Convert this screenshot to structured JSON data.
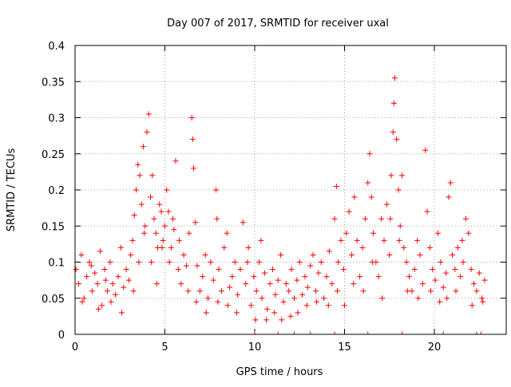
{
  "chart_data": {
    "type": "scatter",
    "title": "Day 007 of 2017, SRMTID for receiver uxal",
    "xlabel": "GPS time / hours",
    "ylabel": "SRMTID / TECUs",
    "xlim": [
      0,
      24
    ],
    "ylim": [
      0,
      0.4
    ],
    "x_ticks": [
      0,
      5,
      10,
      15,
      20
    ],
    "x_tick_labels": [
      "0",
      "5",
      "10",
      "15",
      "20"
    ],
    "y_ticks": [
      0,
      0.05,
      0.1,
      0.15,
      0.2,
      0.25,
      0.3,
      0.35,
      0.4
    ],
    "y_tick_labels": [
      "0",
      "0.05",
      "0.1",
      "0.15",
      "0.2",
      "0.25",
      "0.3",
      "0.35",
      "0.4"
    ],
    "grid": true,
    "marker": "+",
    "color": "#ff0000",
    "series": [
      {
        "name": "SRMTID",
        "points": [
          [
            0.05,
            0.09
          ],
          [
            0.2,
            0.07
          ],
          [
            0.35,
            0.11
          ],
          [
            0.5,
            0.05
          ],
          [
            0.65,
            0.08
          ],
          [
            0.8,
            0.1
          ],
          [
            0.95,
            0.06
          ],
          [
            1.1,
            0.085
          ],
          [
            1.25,
            0.07
          ],
          [
            1.4,
            0.115
          ],
          [
            1.5,
            0.04
          ],
          [
            1.65,
            0.09
          ],
          [
            1.8,
            0.06
          ],
          [
            1.95,
            0.1
          ],
          [
            2.1,
            0.07
          ],
          [
            2.25,
            0.055
          ],
          [
            2.4,
            0.08
          ],
          [
            2.55,
            0.12
          ],
          [
            2.7,
            0.065
          ],
          [
            2.85,
            0.09
          ],
          [
            3.0,
            0.075
          ],
          [
            3.1,
            0.11
          ],
          [
            3.2,
            0.13
          ],
          [
            3.3,
            0.165
          ],
          [
            3.4,
            0.2
          ],
          [
            3.5,
            0.235
          ],
          [
            3.6,
            0.22
          ],
          [
            3.7,
            0.18
          ],
          [
            3.8,
            0.26
          ],
          [
            3.9,
            0.15
          ],
          [
            4.0,
            0.28
          ],
          [
            4.1,
            0.305
          ],
          [
            4.2,
            0.19
          ],
          [
            4.3,
            0.22
          ],
          [
            4.4,
            0.16
          ],
          [
            4.5,
            0.14
          ],
          [
            4.6,
            0.12
          ],
          [
            4.7,
            0.18
          ],
          [
            4.8,
            0.17
          ],
          [
            4.9,
            0.13
          ],
          [
            5.0,
            0.15
          ],
          [
            5.1,
            0.2
          ],
          [
            5.2,
            0.17
          ],
          [
            5.35,
            0.12
          ],
          [
            5.5,
            0.145
          ],
          [
            5.6,
            0.24
          ],
          [
            5.75,
            0.09
          ],
          [
            5.9,
            0.07
          ],
          [
            6.05,
            0.11
          ],
          [
            6.2,
            0.095
          ],
          [
            6.35,
            0.14
          ],
          [
            6.5,
            0.3
          ],
          [
            6.55,
            0.27
          ],
          [
            6.6,
            0.23
          ],
          [
            6.7,
            0.155
          ],
          [
            6.8,
            0.095
          ],
          [
            6.95,
            0.06
          ],
          [
            7.1,
            0.08
          ],
          [
            7.25,
            0.11
          ],
          [
            7.4,
            0.05
          ],
          [
            7.55,
            0.1
          ],
          [
            7.7,
            0.075
          ],
          [
            7.85,
            0.2
          ],
          [
            7.9,
            0.16
          ],
          [
            8.0,
            0.09
          ],
          [
            8.15,
            0.06
          ],
          [
            8.3,
            0.12
          ],
          [
            8.45,
            0.14
          ],
          [
            8.6,
            0.065
          ],
          [
            8.75,
            0.08
          ],
          [
            8.9,
            0.1
          ],
          [
            9.05,
            0.055
          ],
          [
            9.2,
            0.09
          ],
          [
            9.35,
            0.155
          ],
          [
            9.5,
            0.07
          ],
          [
            9.65,
            0.12
          ],
          [
            9.8,
            0.04
          ],
          [
            9.95,
            0.08
          ],
          [
            10.1,
            0.06
          ],
          [
            10.25,
            0.1
          ],
          [
            10.4,
            0.05
          ],
          [
            10.55,
            0.085
          ],
          [
            10.7,
            0.035
          ],
          [
            10.85,
            0.07
          ],
          [
            11.0,
            0.09
          ],
          [
            11.15,
            0.055
          ],
          [
            11.3,
            0.075
          ],
          [
            11.45,
            0.11
          ],
          [
            11.6,
            0.045
          ],
          [
            11.75,
            0.07
          ],
          [
            11.9,
            0.06
          ],
          [
            12.05,
            0.09
          ],
          [
            12.2,
            0.05
          ],
          [
            12.35,
            0.075
          ],
          [
            12.5,
            0.1
          ],
          [
            12.65,
            0.055
          ],
          [
            12.8,
            0.08
          ],
          [
            12.95,
            0.065
          ],
          [
            13.1,
            0.095
          ],
          [
            13.25,
            0.11
          ],
          [
            13.4,
            0.06
          ],
          [
            13.55,
            0.085
          ],
          [
            13.7,
            0.1
          ],
          [
            13.85,
            0.05
          ],
          [
            14.0,
            0.08
          ],
          [
            14.15,
            0.115
          ],
          [
            14.3,
            0.07
          ],
          [
            14.45,
            0.16
          ],
          [
            14.55,
            0.205
          ],
          [
            14.65,
            0.1
          ],
          [
            14.8,
            0.13
          ],
          [
            14.95,
            0.09
          ],
          [
            15.1,
            0.14
          ],
          [
            15.25,
            0.17
          ],
          [
            15.4,
            0.11
          ],
          [
            15.55,
            0.19
          ],
          [
            15.7,
            0.13
          ],
          [
            15.85,
            0.08
          ],
          [
            16.0,
            0.12
          ],
          [
            16.15,
            0.16
          ],
          [
            16.3,
            0.21
          ],
          [
            16.4,
            0.25
          ],
          [
            16.5,
            0.19
          ],
          [
            16.6,
            0.14
          ],
          [
            16.75,
            0.1
          ],
          [
            16.9,
            0.08
          ],
          [
            17.05,
            0.16
          ],
          [
            17.2,
            0.13
          ],
          [
            17.35,
            0.18
          ],
          [
            17.5,
            0.11
          ],
          [
            17.6,
            0.22
          ],
          [
            17.7,
            0.28
          ],
          [
            17.75,
            0.32
          ],
          [
            17.8,
            0.355
          ],
          [
            17.9,
            0.27
          ],
          [
            18.0,
            0.2
          ],
          [
            18.1,
            0.15
          ],
          [
            18.2,
            0.22
          ],
          [
            18.3,
            0.12
          ],
          [
            18.45,
            0.1
          ],
          [
            18.6,
            0.08
          ],
          [
            18.75,
            0.06
          ],
          [
            18.9,
            0.09
          ],
          [
            19.05,
            0.13
          ],
          [
            19.2,
            0.11
          ],
          [
            19.35,
            0.07
          ],
          [
            19.5,
            0.255
          ],
          [
            19.6,
            0.17
          ],
          [
            19.75,
            0.12
          ],
          [
            19.9,
            0.09
          ],
          [
            20.05,
            0.075
          ],
          [
            20.2,
            0.14
          ],
          [
            20.35,
            0.1
          ],
          [
            20.5,
            0.065
          ],
          [
            20.65,
            0.085
          ],
          [
            20.8,
            0.19
          ],
          [
            20.9,
            0.21
          ],
          [
            21.0,
            0.11
          ],
          [
            21.15,
            0.09
          ],
          [
            21.3,
            0.12
          ],
          [
            21.45,
            0.08
          ],
          [
            21.6,
            0.1
          ],
          [
            21.75,
            0.16
          ],
          [
            21.9,
            0.14
          ],
          [
            22.05,
            0.09
          ],
          [
            22.2,
            0.07
          ],
          [
            22.35,
            0.06
          ],
          [
            22.5,
            0.085
          ],
          [
            22.65,
            0.05
          ],
          [
            22.8,
            0.075
          ],
          [
            0.4,
            0.045
          ],
          [
            0.9,
            0.095
          ],
          [
            1.3,
            0.035
          ],
          [
            1.7,
            0.075
          ],
          [
            2.0,
            0.045
          ],
          [
            2.6,
            0.03
          ],
          [
            3.25,
            0.06
          ],
          [
            3.55,
            0.1
          ],
          [
            3.85,
            0.14
          ],
          [
            4.25,
            0.1
          ],
          [
            4.55,
            0.07
          ],
          [
            4.85,
            0.12
          ],
          [
            5.25,
            0.1
          ],
          [
            5.45,
            0.16
          ],
          [
            5.8,
            0.13
          ],
          [
            6.3,
            0.06
          ],
          [
            6.75,
            0.045
          ],
          [
            7.3,
            0.03
          ],
          [
            7.95,
            0.045
          ],
          [
            8.5,
            0.04
          ],
          [
            9.0,
            0.03
          ],
          [
            9.6,
            0.1
          ],
          [
            10.05,
            0.02
          ],
          [
            10.35,
            0.13
          ],
          [
            10.65,
            0.02
          ],
          [
            11.1,
            0.03
          ],
          [
            11.5,
            0.02
          ],
          [
            12.0,
            0.025
          ],
          [
            12.4,
            0.03
          ],
          [
            12.9,
            0.04
          ],
          [
            13.45,
            0.045
          ],
          [
            14.1,
            0.04
          ],
          [
            14.6,
            0.06
          ],
          [
            15.0,
            0.04
          ],
          [
            15.5,
            0.07
          ],
          [
            16.05,
            0.06
          ],
          [
            16.55,
            0.1
          ],
          [
            17.1,
            0.05
          ],
          [
            17.55,
            0.16
          ],
          [
            18.05,
            0.13
          ],
          [
            18.5,
            0.06
          ],
          [
            19.1,
            0.05
          ],
          [
            19.8,
            0.06
          ],
          [
            20.3,
            0.045
          ],
          [
            20.7,
            0.05
          ],
          [
            21.2,
            0.06
          ],
          [
            21.55,
            0.13
          ],
          [
            22.1,
            0.04
          ],
          [
            22.7,
            0.045
          ]
        ]
      }
    ],
    "zero_markers_x": [
      10.0,
      11.3,
      12.2,
      13.1,
      14.45,
      16.3,
      18.2,
      20.5,
      22.35,
      22.6
    ]
  }
}
